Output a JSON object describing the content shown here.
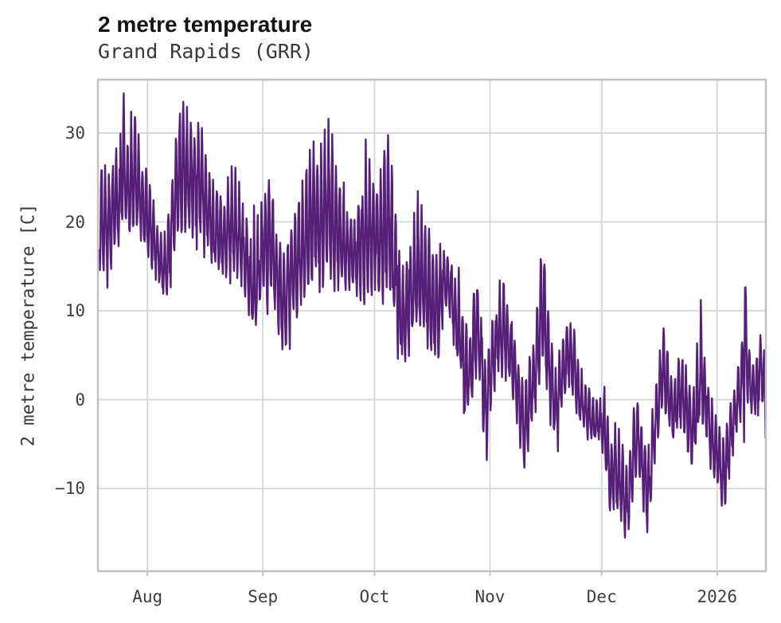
{
  "header": {
    "title": "2 metre temperature",
    "subtitle": "Grand Rapids (GRR)"
  },
  "chart_data": {
    "type": "line",
    "title": "2 metre temperature",
    "subtitle": "Grand Rapids (GRR)",
    "xlabel": "",
    "ylabel": "2 metre temperature [C]",
    "series_name": "2 metre temperature at Grand Rapids (GRR)",
    "legend": "none",
    "grid": true,
    "line_color": "#562078",
    "grid_color": "#d6d6d6",
    "spine_color": "#c2c2c2",
    "background_color": "#ffffff",
    "x_start_date": "2025-07-19",
    "x_unit": "days since 2025-07-19",
    "xlim_days": [
      -0.3,
      179.1
    ],
    "ylim": [
      -19.3,
      36.0
    ],
    "y_ticks": [
      30,
      20,
      10,
      0,
      -10
    ],
    "y_tick_labels": [
      "30",
      "20",
      "10",
      "0",
      "−10"
    ],
    "x_ticks": [
      {
        "label": "Aug",
        "day": 13
      },
      {
        "label": "Sep",
        "day": 44
      },
      {
        "label": "Oct",
        "day": 74
      },
      {
        "label": "Nov",
        "day": 105
      },
      {
        "label": "Dec",
        "day": 135
      },
      {
        "label": "2026",
        "day": 166
      }
    ],
    "observed_extremes": {
      "max_c": 33.4,
      "max_date_approx": "2025-07-25",
      "min_c": -16.6,
      "min_date_approx": "2025-12-07",
      "end_value_c": -8.0
    },
    "daily_mean": [
      20.5,
      21,
      19.5,
      21,
      22.5,
      22.5,
      26.5,
      23.5,
      25,
      26,
      24,
      22,
      21,
      20,
      18.5,
      17,
      16,
      15,
      16,
      19,
      23,
      25.5,
      26.5,
      26,
      25,
      24,
      24.5,
      25,
      23,
      21,
      20,
      19,
      18.5,
      18,
      19,
      20,
      20,
      19,
      17.5,
      16,
      14,
      12.5,
      14.5,
      16.5,
      18,
      18.5,
      17,
      14.5,
      13,
      11.5,
      12,
      14,
      15,
      16,
      17.5,
      19,
      20,
      21,
      20.5,
      20,
      21,
      22.5,
      21.5,
      20.5,
      19,
      17.5,
      17,
      16.5,
      17,
      17.5,
      18,
      19,
      19.5,
      19,
      18,
      18.5,
      20,
      21,
      19,
      15,
      11,
      9,
      10,
      12,
      14,
      15,
      15,
      14,
      12.5,
      11,
      10.5,
      11.5,
      13,
      13.5,
      12.5,
      10,
      8,
      6,
      3.5,
      2.5,
      7,
      9,
      5,
      -1,
      1,
      4,
      7,
      8,
      8.5,
      7,
      5.5,
      4,
      1,
      -1,
      -3,
      0,
      2,
      5,
      9,
      10.5,
      6,
      2,
      -1,
      1,
      3,
      5,
      5.5,
      4,
      1.5,
      0,
      -1,
      -1.5,
      -2,
      -2.5,
      -2,
      -3,
      -5,
      -9.5,
      -7,
      -9,
      -9,
      -12,
      -10,
      -6,
      -4,
      -6,
      -8,
      -10.5,
      -6,
      -2,
      1,
      4,
      2,
      0,
      -1.5,
      0.5,
      1,
      -0.5,
      -2,
      -3.5,
      0,
      4,
      1,
      -2,
      -4,
      -5.5,
      -6,
      -9,
      -7,
      -4,
      -2,
      0,
      2,
      8,
      3,
      1,
      2,
      4,
      3,
      -5
    ],
    "daily_swing": [
      6,
      5.5,
      5,
      5,
      5.5,
      6.5,
      7,
      4.5,
      6,
      7,
      5,
      4.5,
      4.5,
      4.5,
      3.5,
      3,
      3,
      3,
      3.5,
      5,
      6,
      6.5,
      7,
      6.5,
      6,
      6,
      6.5,
      7,
      5,
      4,
      4,
      4.5,
      4,
      4,
      5,
      6,
      6,
      5,
      4.5,
      4.5,
      5,
      5,
      5,
      5.5,
      6,
      7.5,
      5,
      4.5,
      5,
      6,
      6,
      5,
      6,
      6,
      6.5,
      7,
      7,
      7.5,
      7,
      7,
      7.5,
      7.5,
      7,
      7,
      6,
      4.5,
      4,
      3.5,
      4,
      5.5,
      6,
      7,
      7,
      6,
      6,
      7,
      8,
      8.5,
      7,
      6,
      6,
      5,
      5,
      6,
      6.5,
      7,
      7,
      6.5,
      6.5,
      6,
      6,
      6,
      4,
      3,
      3,
      4,
      4.5,
      4,
      5,
      4,
      5,
      5,
      5,
      5,
      4,
      4,
      4,
      4.5,
      5,
      4,
      4,
      4,
      4,
      4,
      5,
      4,
      4,
      5,
      6,
      6,
      5,
      4,
      3.5,
      3.5,
      3.5,
      4,
      3.5,
      4,
      3.5,
      3,
      2.5,
      2.5,
      2.5,
      2,
      2.5,
      3,
      4,
      4,
      4,
      5,
      4,
      4.5,
      5,
      4,
      3.5,
      4,
      4.5,
      5,
      4,
      3.5,
      4,
      4.5,
      4,
      3.5,
      3.5,
      4,
      4,
      4,
      4.5,
      4,
      5,
      6.5,
      4,
      3.5,
      3.5,
      3.5,
      3.5,
      4,
      4,
      3.5,
      3,
      3,
      3.5,
      7,
      3.5,
      2.5,
      3,
      3,
      4,
      6
    ],
    "samples_per_day": 8,
    "diurnal_profile": [
      -0.55,
      -0.85,
      -1,
      -0.45,
      0.5,
      1,
      0.75,
      0.1
    ],
    "noise_amplitude": 0.5,
    "spike_probability": 0.06,
    "spike_amplitude": 0.9,
    "random_seed": 7
  }
}
